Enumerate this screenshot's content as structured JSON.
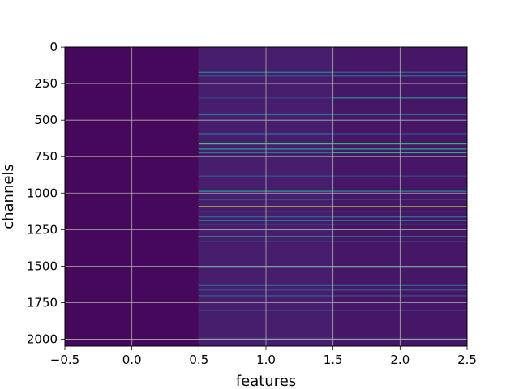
{
  "chart_data": {
    "type": "heatmap",
    "title": "",
    "xlabel": "features",
    "ylabel": "channels",
    "xlim": [
      -0.5,
      2.5
    ],
    "ylim": [
      2047.5,
      -0.5
    ],
    "y_inverted": true,
    "grid": true,
    "colormap": "viridis",
    "value_range": [
      0,
      1
    ],
    "x_ticks": [
      -0.5,
      0.0,
      0.5,
      1.0,
      1.5,
      2.0,
      2.5
    ],
    "x_tick_labels": [
      "−0.5",
      "0.0",
      "0.5",
      "1.0",
      "1.5",
      "2.0",
      "2.5"
    ],
    "y_ticks": [
      0,
      250,
      500,
      750,
      1000,
      1250,
      1500,
      1750,
      2000
    ],
    "y_tick_labels": [
      "0",
      "250",
      "500",
      "750",
      "1000",
      "1250",
      "1500",
      "1750",
      "2000"
    ],
    "features": [
      0,
      1,
      2
    ],
    "column_baseline": [
      0.02,
      0.08,
      0.06
    ],
    "highlighted_channels": [
      {
        "channel": 1090,
        "values": [
          0.03,
          0.95,
          0.9
        ]
      },
      {
        "channel": 1245,
        "values": [
          0.03,
          0.85,
          0.8
        ]
      },
      {
        "channel": 660,
        "values": [
          0.02,
          0.7,
          0.65
        ]
      },
      {
        "channel": 695,
        "values": [
          0.02,
          0.55,
          0.6
        ]
      },
      {
        "channel": 720,
        "values": [
          0.02,
          0.4,
          0.62
        ]
      },
      {
        "channel": 985,
        "values": [
          0.02,
          0.55,
          0.45
        ]
      },
      {
        "channel": 1295,
        "values": [
          0.02,
          0.6,
          0.5
        ]
      },
      {
        "channel": 1505,
        "values": [
          0.02,
          0.5,
          0.55
        ]
      },
      {
        "channel": 1185,
        "values": [
          0.02,
          0.45,
          0.4
        ]
      },
      {
        "channel": 1160,
        "values": [
          0.02,
          0.3,
          0.35
        ]
      },
      {
        "channel": 1210,
        "values": [
          0.02,
          0.35,
          0.3
        ]
      },
      {
        "channel": 1330,
        "values": [
          0.02,
          0.3,
          0.35
        ]
      },
      {
        "channel": 345,
        "values": [
          0.02,
          0.2,
          0.5
        ]
      },
      {
        "channel": 170,
        "values": [
          0.02,
          0.45,
          0.3
        ]
      },
      {
        "channel": 195,
        "values": [
          0.02,
          0.25,
          0.35
        ]
      },
      {
        "channel": 460,
        "values": [
          0.02,
          0.35,
          0.3
        ]
      },
      {
        "channel": 590,
        "values": [
          0.02,
          0.35,
          0.25
        ]
      },
      {
        "channel": 1040,
        "values": [
          0.02,
          0.3,
          0.25
        ]
      },
      {
        "channel": 1630,
        "values": [
          0.02,
          0.3,
          0.3
        ]
      },
      {
        "channel": 1660,
        "values": [
          0.02,
          0.25,
          0.3
        ]
      },
      {
        "channel": 1700,
        "values": [
          0.02,
          0.3,
          0.25
        ]
      },
      {
        "channel": 1125,
        "values": [
          0.02,
          0.3,
          0.25
        ]
      },
      {
        "channel": 880,
        "values": [
          0.02,
          0.25,
          0.2
        ]
      },
      {
        "channel": 1800,
        "values": [
          0.02,
          0.25,
          0.2
        ]
      },
      {
        "channel": 1990,
        "values": [
          0.02,
          0.2,
          0.15
        ]
      }
    ]
  }
}
